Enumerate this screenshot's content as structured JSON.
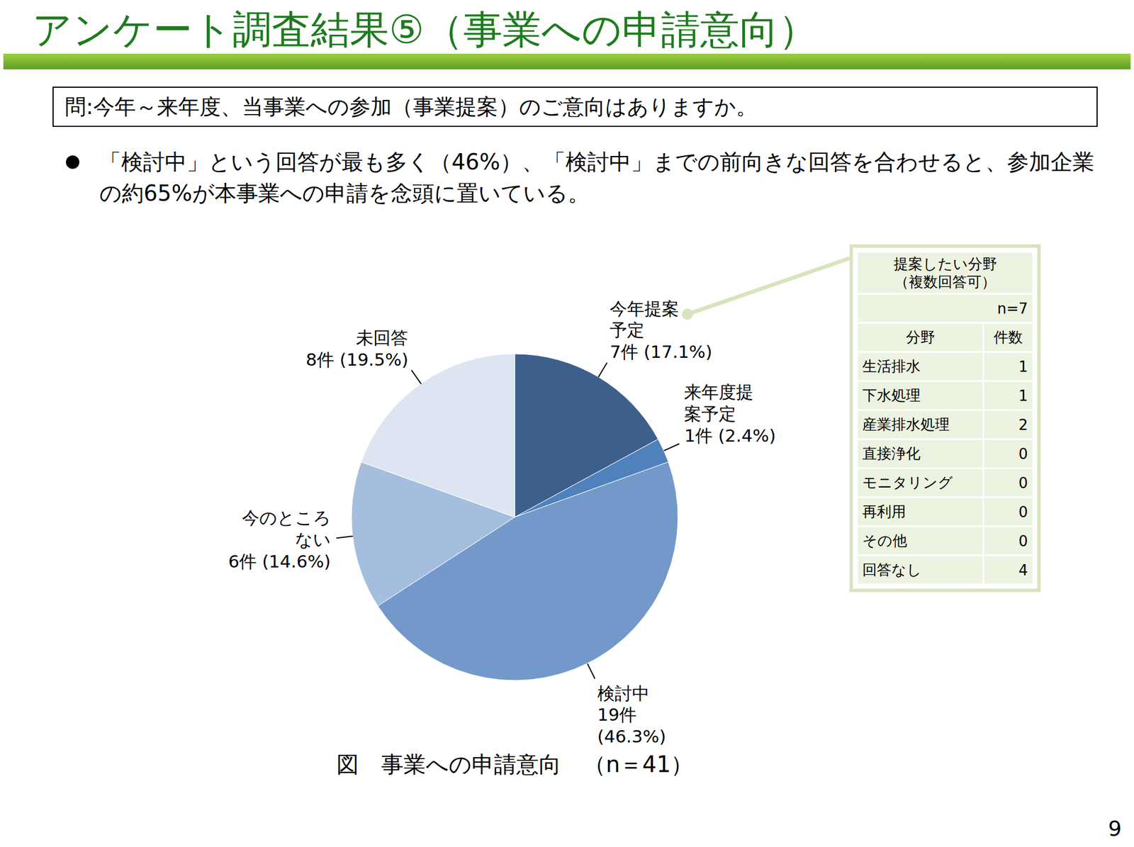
{
  "title": "アンケート調査結果⑤（事業への申請意向）",
  "question": "問:今年～来年度、当事業への参加（事業提案）のご意向はありますか。",
  "bullets": [
    "「検討中」という回答が最も多く（46%）、「検討中」までの前向きな回答を合わせると、参加企業の約65%が本事業への申請を念頭に置いている。"
  ],
  "chart_data": {
    "type": "pie",
    "title": "図　事業への申請意向　（n＝41）",
    "categories": [
      "今年提案\n予定",
      "来年度提\n案予定",
      "検討中",
      "今のところ\nない",
      "未回答"
    ],
    "values": [
      7,
      1,
      19,
      6,
      8
    ],
    "value_labels": [
      "7件 (17.1%)",
      "1件 (2.4%)",
      "19件\n(46.3%)",
      "6件 (14.6%)",
      "8件 (19.5%)"
    ],
    "colors": [
      "#3d5f8c",
      "#4f81bd",
      "#7299c9",
      "#a5bedd",
      "#dce5f1"
    ],
    "data_labels": true
  },
  "table": {
    "title": "提案したい分野\n（複数回答可）",
    "n": "n=7",
    "header": [
      "分野",
      "件数"
    ],
    "rows": [
      [
        "生活排水",
        1
      ],
      [
        "下水処理",
        1
      ],
      [
        "産業排水処理",
        2
      ],
      [
        "直接浄化",
        0
      ],
      [
        "モニタリング",
        0
      ],
      [
        "再利用",
        0
      ],
      [
        "その他",
        0
      ],
      [
        "回答なし",
        4
      ]
    ]
  },
  "page_number": 9
}
